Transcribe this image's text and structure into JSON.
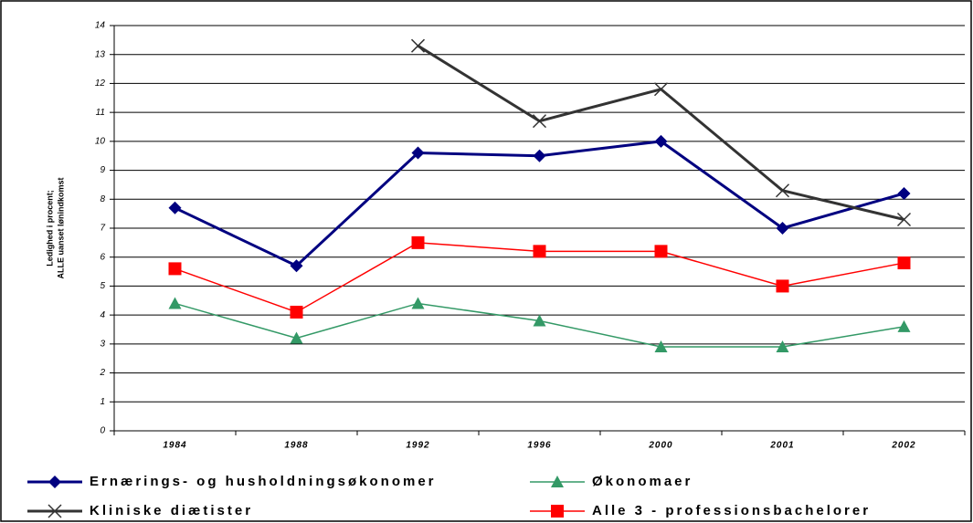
{
  "chart_data": {
    "type": "line",
    "y_label": [
      "Ledighed i procent;",
      "ALLE uanset lønindkomst"
    ],
    "categories": [
      "1984",
      "1988",
      "1992",
      "1996",
      "2000",
      "2001",
      "2002"
    ],
    "series": [
      {
        "name": "Ernærings- og husholdningsøkonomer",
        "color": "#000080",
        "marker": "diamond",
        "line_width": 3,
        "values": [
          7.7,
          5.7,
          9.6,
          9.5,
          10.0,
          7.0,
          8.2
        ]
      },
      {
        "name": "Økonomaer",
        "color": "#339966",
        "marker": "triangle",
        "line_width": 1.5,
        "values": [
          4.4,
          3.2,
          4.4,
          3.8,
          2.9,
          2.9,
          3.6
        ]
      },
      {
        "name": "Kliniske diætister",
        "color": "#333333",
        "marker": "cross",
        "line_width": 3,
        "values": [
          null,
          null,
          13.3,
          10.7,
          11.8,
          8.3,
          7.3
        ]
      },
      {
        "name": "Alle 3 - professionsbachelorer",
        "color": "#ff0000",
        "marker": "square",
        "line_width": 1.5,
        "values": [
          5.6,
          4.1,
          6.5,
          6.2,
          6.2,
          5.0,
          5.8
        ]
      }
    ],
    "ylim": [
      0,
      14
    ],
    "yticks": [
      0,
      1,
      2,
      3,
      4,
      5,
      6,
      7,
      8,
      9,
      10,
      11,
      12,
      13,
      14
    ],
    "grid": true
  }
}
